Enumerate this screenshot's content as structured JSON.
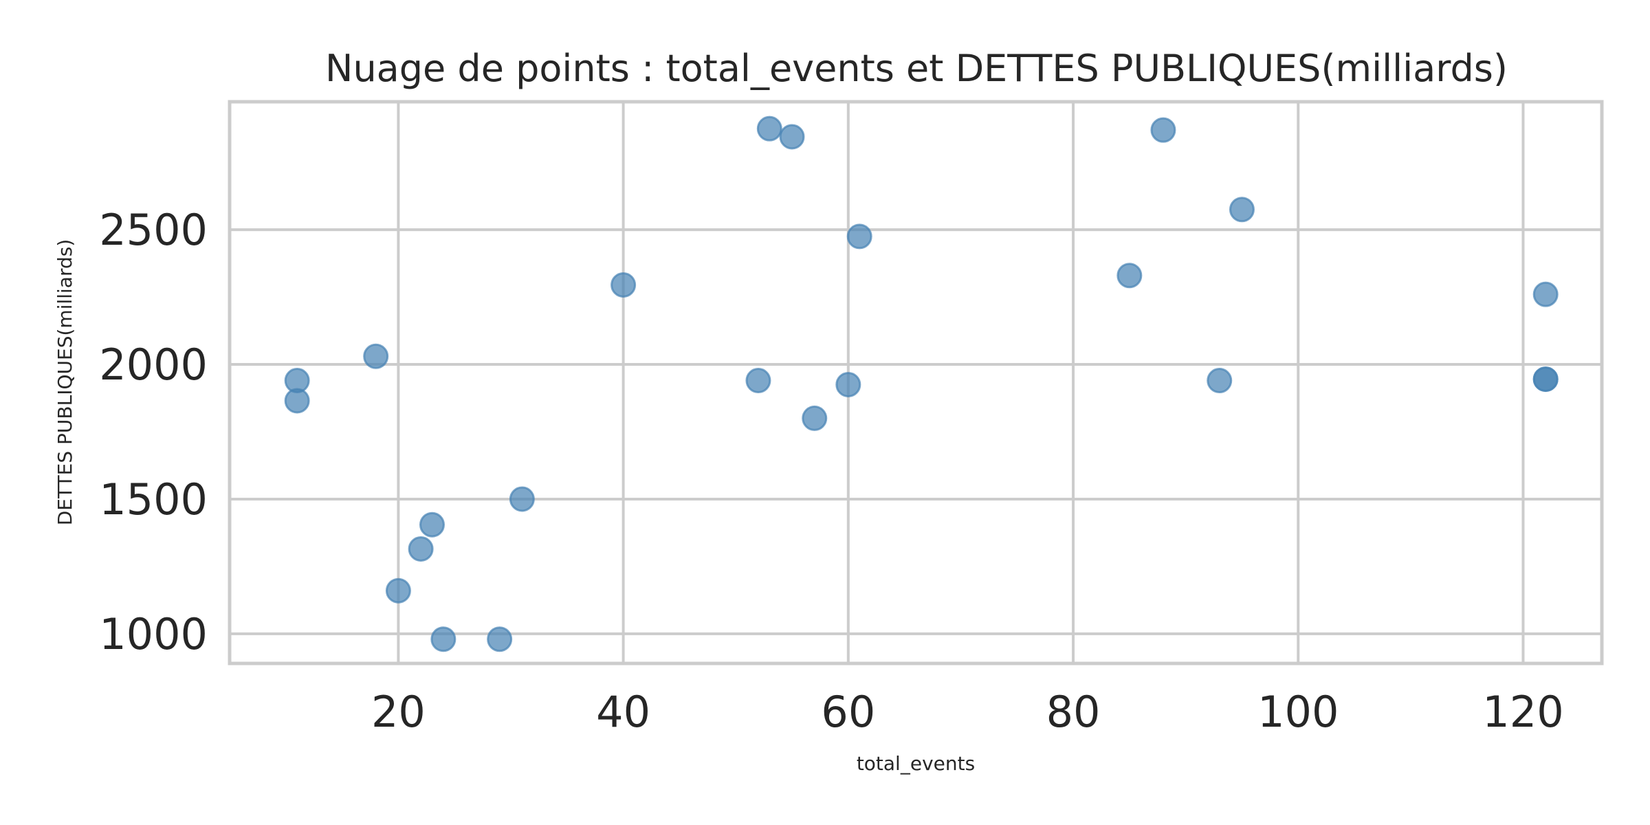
{
  "chart_data": {
    "type": "scatter",
    "title": "Nuage de points : total_events et DETTES PUBLIQUES(milliards)",
    "xlabel": "total_events",
    "ylabel": "DETTES PUBLIQUES(milliards)",
    "xlim": [
      5,
      127
    ],
    "ylim": [
      890,
      2975
    ],
    "xticks": [
      20,
      40,
      60,
      80,
      100,
      120
    ],
    "yticks": [
      1000,
      1500,
      2000,
      2500
    ],
    "grid": true,
    "legend": false,
    "marker_color": "#4682b4",
    "grid_color": "#cccccc",
    "points": [
      {
        "x": 11,
        "y": 1940
      },
      {
        "x": 11,
        "y": 1865
      },
      {
        "x": 18,
        "y": 2030
      },
      {
        "x": 20,
        "y": 1160
      },
      {
        "x": 22,
        "y": 1315
      },
      {
        "x": 23,
        "y": 1405
      },
      {
        "x": 24,
        "y": 980
      },
      {
        "x": 29,
        "y": 980
      },
      {
        "x": 31,
        "y": 1500
      },
      {
        "x": 40,
        "y": 2295
      },
      {
        "x": 52,
        "y": 1940
      },
      {
        "x": 53,
        "y": 2875
      },
      {
        "x": 55,
        "y": 2845
      },
      {
        "x": 57,
        "y": 1800
      },
      {
        "x": 60,
        "y": 1925
      },
      {
        "x": 61,
        "y": 2475
      },
      {
        "x": 85,
        "y": 2330
      },
      {
        "x": 88,
        "y": 2870
      },
      {
        "x": 93,
        "y": 1940
      },
      {
        "x": 95,
        "y": 2575
      },
      {
        "x": 122,
        "y": 2260
      },
      {
        "x": 122,
        "y": 1945
      },
      {
        "x": 122,
        "y": 1945
      }
    ]
  }
}
